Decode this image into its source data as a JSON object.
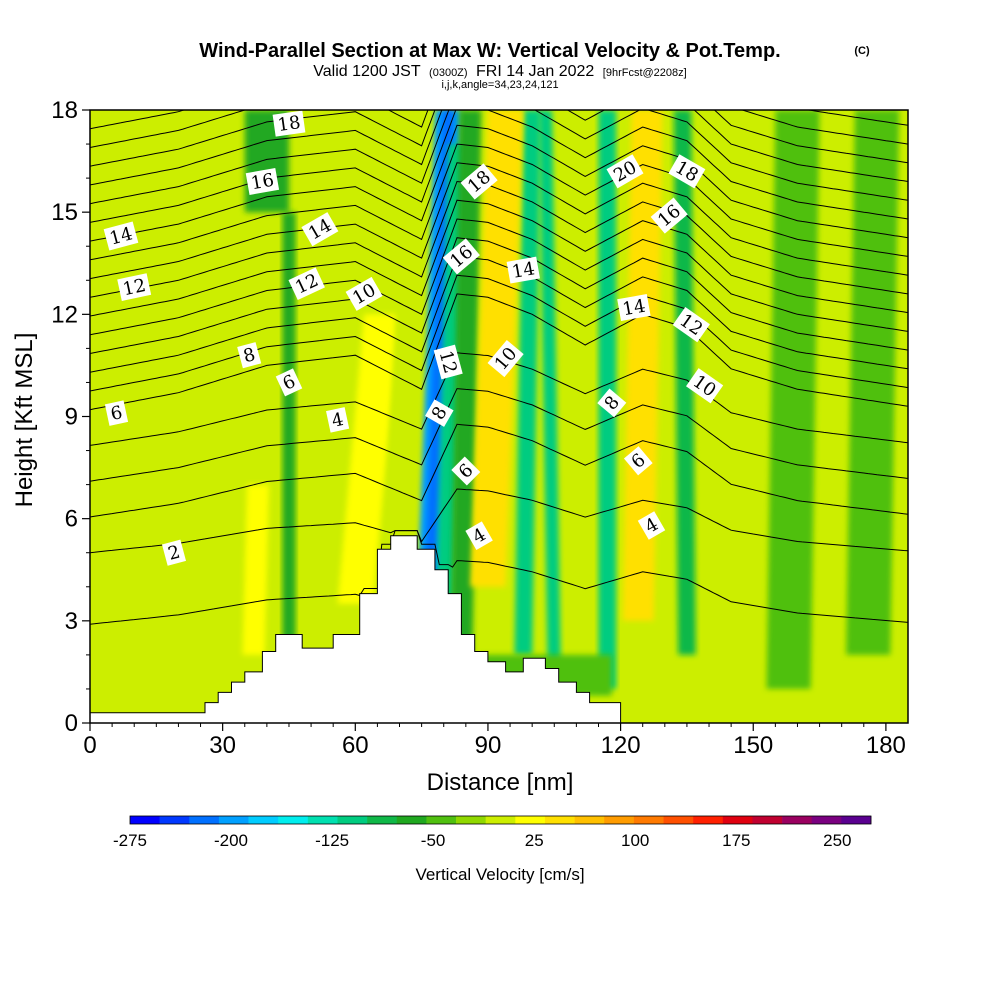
{
  "chart_data": {
    "type": "heatmap",
    "title": "Wind-Parallel Section at Max W: Vertical Velocity & Pot.Temp.",
    "title_mark": "(C)",
    "subtitle": {
      "valid": "Valid 1200 JST",
      "utc": "(0300Z)",
      "date": "FRI 14 Jan 2022",
      "fcst": "[9hrFcst@2208z]"
    },
    "index_line": "i,j,k,angle=34,23,24,121",
    "xlabel": "Distance [nm]",
    "ylabel": "Height [Kft MSL]",
    "xlim": [
      0,
      185
    ],
    "ylim": [
      0,
      18
    ],
    "xticks": [
      "0",
      "30",
      "60",
      "90",
      "120",
      "150",
      "180"
    ],
    "yticks": [
      "0",
      "3",
      "6",
      "9",
      "12",
      "15",
      "18"
    ],
    "colorbar": {
      "label": "Vertical Velocity [cm/s]",
      "min": -275,
      "max": 275,
      "step": 25,
      "tick_labels": [
        "-275",
        "-200",
        "-125",
        "-50",
        "25",
        "100",
        "175",
        "250"
      ],
      "colors": [
        "#0000ff",
        "#0038ff",
        "#0070ff",
        "#00a0ff",
        "#00ccff",
        "#00eeee",
        "#00e0b0",
        "#00cc80",
        "#10b848",
        "#20a820",
        "#50c010",
        "#90d800",
        "#ccee00",
        "#ffff00",
        "#ffe000",
        "#ffc000",
        "#ff9c00",
        "#ff7a00",
        "#ff5000",
        "#ff2000",
        "#e00010",
        "#c00030",
        "#9a0060",
        "#7a0080",
        "#5a0090"
      ]
    },
    "terrain": {
      "x": [
        0,
        26,
        26,
        29,
        29,
        32,
        32,
        35,
        35,
        39,
        39,
        42,
        42,
        48,
        48,
        55,
        55,
        61,
        61,
        65,
        65,
        68,
        68,
        74,
        74,
        78,
        78,
        81,
        81,
        84,
        84,
        87,
        87,
        90,
        90,
        94,
        94,
        98,
        98,
        103,
        103,
        106,
        106,
        110,
        110,
        113,
        113,
        120,
        120
      ],
      "y": [
        0.3,
        0.3,
        0.6,
        0.6,
        0.9,
        0.9,
        1.2,
        1.2,
        1.5,
        1.5,
        2.1,
        2.1,
        2.6,
        2.6,
        2.2,
        2.2,
        2.6,
        2.6,
        3.8,
        3.8,
        5.1,
        5.1,
        5.5,
        5.5,
        5.1,
        5.1,
        4.5,
        4.5,
        3.8,
        3.8,
        2.6,
        2.6,
        2.1,
        2.1,
        1.8,
        1.8,
        1.5,
        1.5,
        1.9,
        1.9,
        1.6,
        1.6,
        1.2,
        1.2,
        0.9,
        0.9,
        0.6,
        0.6,
        0.2
      ]
    },
    "velocity_field": {
      "background": 25,
      "features": [
        {
          "x_bottom": 77,
          "x_top": 81,
          "y_from": 3.5,
          "y_to": 18,
          "width_nm": 6,
          "value": -200
        },
        {
          "x_bottom": 80,
          "x_top": 83,
          "y_from": 2,
          "y_to": 17,
          "width_nm": 4,
          "value": -100
        },
        {
          "x_bottom": 84,
          "x_top": 86,
          "y_from": 2,
          "y_to": 18,
          "width_nm": 5,
          "value": -40
        },
        {
          "x_bottom": 98,
          "x_top": 100,
          "y_from": 2,
          "y_to": 18,
          "width_nm": 4,
          "value": -90
        },
        {
          "x_bottom": 105,
          "x_top": 103,
          "y_from": 1.5,
          "y_to": 18,
          "width_nm": 3,
          "value": -80
        },
        {
          "x_bottom": 117,
          "x_top": 117,
          "y_from": 1,
          "y_to": 18,
          "width_nm": 4,
          "value": -90
        },
        {
          "x_bottom": 135,
          "x_top": 134,
          "y_from": 2,
          "y_to": 18,
          "width_nm": 4,
          "value": -70
        },
        {
          "x_bottom": 45,
          "x_top": 45,
          "y_from": 2.3,
          "y_to": 15,
          "width_nm": 3,
          "value": -50
        },
        {
          "x_bottom": 40,
          "x_top": 40,
          "y_from": 15,
          "y_to": 18,
          "width_nm": 10,
          "value": -40
        },
        {
          "x_bottom": 158,
          "x_top": 160,
          "y_from": 1,
          "y_to": 18,
          "width_nm": 10,
          "value": -20
        },
        {
          "x_bottom": 176,
          "x_top": 178,
          "y_from": 2,
          "y_to": 18,
          "width_nm": 10,
          "value": -20
        },
        {
          "x_bottom": 103,
          "x_top": 103,
          "y_from": 0.8,
          "y_to": 2,
          "width_nm": 30,
          "value": -15
        },
        {
          "x_bottom": 90,
          "x_top": 94,
          "y_from": 4,
          "y_to": 18,
          "width_nm": 8,
          "value": 80
        },
        {
          "x_bottom": 124,
          "x_top": 126,
          "y_from": 3,
          "y_to": 18,
          "width_nm": 7,
          "value": 80
        },
        {
          "x_bottom": 60,
          "x_top": 66,
          "y_from": 3.5,
          "y_to": 12,
          "width_nm": 8,
          "value": 55
        },
        {
          "x_bottom": 37,
          "x_top": 38,
          "y_from": 2,
          "y_to": 7,
          "width_nm": 5,
          "value": 55
        },
        {
          "x_bottom": 70,
          "x_top": 74,
          "y_from": 5,
          "y_to": 18,
          "width_nm": 6,
          "value": 40
        },
        {
          "x_bottom": 142,
          "x_top": 140,
          "y_from": 2,
          "y_to": 12,
          "width_nm": 5,
          "value": 40
        }
      ]
    },
    "theta_contours": {
      "interval": 1,
      "levels": [
        1,
        2,
        3,
        4,
        5,
        6,
        7,
        8,
        9,
        10,
        11,
        12,
        13,
        14,
        15,
        16,
        17,
        18,
        19,
        20,
        21
      ],
      "labels": [
        {
          "text": "2",
          "x": 19,
          "y": 5.0,
          "angle": -15
        },
        {
          "text": "4",
          "x": 56,
          "y": 8.9,
          "angle": -12
        },
        {
          "text": "6",
          "x": 6,
          "y": 9.1,
          "angle": -12
        },
        {
          "text": "6",
          "x": 45,
          "y": 10.0,
          "angle": -25
        },
        {
          "text": "8",
          "x": 36,
          "y": 10.8,
          "angle": -15
        },
        {
          "text": "10",
          "x": 62,
          "y": 12.6,
          "angle": -30
        },
        {
          "text": "12",
          "x": 10,
          "y": 12.8,
          "angle": -12
        },
        {
          "text": "12",
          "x": 49,
          "y": 12.9,
          "angle": -25
        },
        {
          "text": "14",
          "x": 7,
          "y": 14.3,
          "angle": -15
        },
        {
          "text": "14",
          "x": 52,
          "y": 14.5,
          "angle": -30
        },
        {
          "text": "16",
          "x": 39,
          "y": 15.9,
          "angle": -10
        },
        {
          "text": "18",
          "x": 45,
          "y": 17.6,
          "angle": -8
        },
        {
          "text": "8",
          "x": 79,
          "y": 9.1,
          "angle": -60
        },
        {
          "text": "12",
          "x": 81,
          "y": 10.6,
          "angle": 75
        },
        {
          "text": "6",
          "x": 85,
          "y": 7.4,
          "angle": -45
        },
        {
          "text": "4",
          "x": 88,
          "y": 5.5,
          "angle": -30
        },
        {
          "text": "10",
          "x": 94,
          "y": 10.7,
          "angle": -50
        },
        {
          "text": "16",
          "x": 84,
          "y": 13.7,
          "angle": -40
        },
        {
          "text": "14",
          "x": 98,
          "y": 13.3,
          "angle": -10
        },
        {
          "text": "18",
          "x": 88,
          "y": 15.9,
          "angle": -40
        },
        {
          "text": "8",
          "x": 118,
          "y": 9.4,
          "angle": -50
        },
        {
          "text": "6",
          "x": 124,
          "y": 7.7,
          "angle": -40
        },
        {
          "text": "4",
          "x": 127,
          "y": 5.8,
          "angle": -30
        },
        {
          "text": "14",
          "x": 123,
          "y": 12.2,
          "angle": -10
        },
        {
          "text": "20",
          "x": 121,
          "y": 16.2,
          "angle": -30
        },
        {
          "text": "16",
          "x": 131,
          "y": 14.9,
          "angle": -40
        },
        {
          "text": "18",
          "x": 135,
          "y": 16.2,
          "angle": 30
        },
        {
          "text": "12",
          "x": 136,
          "y": 11.7,
          "angle": 35
        },
        {
          "text": "10",
          "x": 139,
          "y": 9.9,
          "angle": 35
        }
      ]
    }
  }
}
